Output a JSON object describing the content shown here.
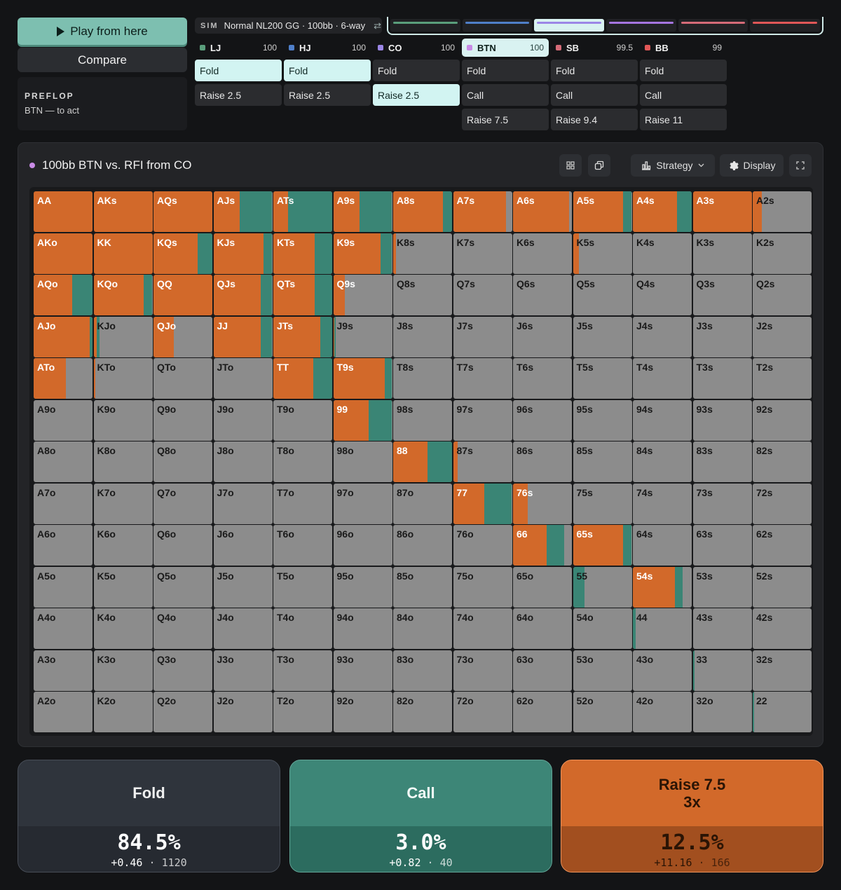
{
  "left": {
    "play_label": "Play from here",
    "compare_label": "Compare",
    "street": "PREFLOP",
    "status": "BTN — to act"
  },
  "sim": {
    "tag": "SIM",
    "name": "Normal NL200 GG · 100bb · 6-way",
    "swap_icon": "⇄"
  },
  "seat_bars": [
    {
      "color": "#5a9e7c",
      "active": false
    },
    {
      "color": "#4f7fc9",
      "active": false
    },
    {
      "color": "#9b86e6",
      "active": true
    },
    {
      "color": "#a575e0",
      "active": false
    },
    {
      "color": "#d56b78",
      "active": false
    },
    {
      "color": "#e05757",
      "active": false
    }
  ],
  "positions": [
    {
      "name": "LJ",
      "stack": "100",
      "color": "#5a9e7c",
      "actions": [
        "Fold",
        "Raise 2.5"
      ],
      "selected": 0
    },
    {
      "name": "HJ",
      "stack": "100",
      "color": "#4f7fc9",
      "actions": [
        "Fold",
        "Raise 2.5"
      ],
      "selected": 0
    },
    {
      "name": "CO",
      "stack": "100",
      "color": "#9b86e6",
      "actions": [
        "Fold",
        "Raise 2.5"
      ],
      "selected": 1
    },
    {
      "name": "BTN",
      "stack": "100",
      "color": "#c98be6",
      "actions": [
        "Fold",
        "Call",
        "Raise 7.5"
      ],
      "selected": -1,
      "active": true
    },
    {
      "name": "SB",
      "stack": "99.5",
      "color": "#d56b78",
      "actions": [
        "Fold",
        "Call",
        "Raise 9.4"
      ],
      "selected": -1
    },
    {
      "name": "BB",
      "stack": "99",
      "color": "#e05757",
      "actions": [
        "Fold",
        "Call",
        "Raise 11"
      ],
      "selected": -1
    }
  ],
  "panel": {
    "title": "100bb BTN vs. RFI from CO",
    "strategy_label": "Strategy",
    "display_label": "Display"
  },
  "colors": {
    "raise": "#d2692a",
    "call": "#3a8575",
    "fold": "#8c8c8c"
  },
  "grid": {
    "ranks": [
      "A",
      "K",
      "Q",
      "J",
      "T",
      "9",
      "8",
      "7",
      "6",
      "5",
      "4",
      "3",
      "2"
    ],
    "raise": [
      [
        100,
        100,
        100,
        45,
        25,
        45,
        85,
        90,
        95,
        85,
        75,
        100,
        15
      ],
      [
        100,
        100,
        75,
        85,
        70,
        80,
        5,
        0,
        0,
        10,
        0,
        0,
        0
      ],
      [
        65,
        85,
        100,
        80,
        70,
        20,
        0,
        0,
        0,
        0,
        0,
        0,
        0
      ],
      [
        95,
        5,
        35,
        80,
        80,
        2,
        0,
        0,
        0,
        0,
        0,
        0,
        0
      ],
      [
        55,
        3,
        0,
        0,
        68,
        88,
        0,
        0,
        0,
        0,
        0,
        0,
        0
      ],
      [
        0,
        0,
        0,
        0,
        0,
        60,
        0,
        0,
        0,
        0,
        0,
        0,
        0
      ],
      [
        0,
        0,
        0,
        0,
        0,
        0,
        58,
        8,
        0,
        0,
        0,
        0,
        0
      ],
      [
        0,
        0,
        0,
        0,
        0,
        0,
        0,
        53,
        25,
        0,
        0,
        0,
        0
      ],
      [
        0,
        0,
        0,
        0,
        0,
        0,
        0,
        0,
        57,
        85,
        0,
        0,
        0
      ],
      [
        0,
        0,
        0,
        0,
        0,
        0,
        0,
        0,
        0,
        0,
        72,
        0,
        0
      ],
      [
        0,
        0,
        0,
        0,
        0,
        0,
        0,
        0,
        0,
        0,
        0,
        0,
        0
      ],
      [
        0,
        0,
        0,
        0,
        0,
        0,
        0,
        0,
        0,
        0,
        0,
        0,
        0
      ],
      [
        0,
        0,
        0,
        0,
        0,
        0,
        0,
        0,
        0,
        0,
        0,
        0,
        0
      ]
    ],
    "call": [
      [
        0,
        0,
        0,
        55,
        75,
        55,
        15,
        0,
        0,
        15,
        25,
        0,
        0
      ],
      [
        0,
        0,
        25,
        15,
        30,
        20,
        0,
        0,
        0,
        0,
        0,
        0,
        0
      ],
      [
        35,
        15,
        0,
        20,
        30,
        0,
        0,
        0,
        0,
        0,
        0,
        0,
        0
      ],
      [
        5,
        5,
        0,
        20,
        20,
        2,
        0,
        0,
        0,
        0,
        0,
        0,
        0
      ],
      [
        0,
        0,
        0,
        0,
        32,
        12,
        0,
        0,
        0,
        0,
        0,
        0,
        0
      ],
      [
        0,
        0,
        0,
        0,
        0,
        40,
        0,
        0,
        0,
        0,
        0,
        0,
        0
      ],
      [
        0,
        0,
        0,
        0,
        0,
        0,
        42,
        0,
        0,
        0,
        0,
        0,
        0
      ],
      [
        0,
        0,
        0,
        0,
        0,
        0,
        0,
        47,
        0,
        0,
        0,
        0,
        0
      ],
      [
        0,
        0,
        0,
        0,
        0,
        0,
        0,
        0,
        30,
        15,
        0,
        0,
        0
      ],
      [
        0,
        0,
        0,
        0,
        0,
        0,
        0,
        0,
        0,
        20,
        12,
        0,
        0
      ],
      [
        0,
        0,
        0,
        0,
        0,
        0,
        0,
        0,
        0,
        0,
        5,
        0,
        0
      ],
      [
        0,
        0,
        0,
        0,
        0,
        0,
        0,
        0,
        0,
        0,
        0,
        3,
        0
      ],
      [
        0,
        0,
        0,
        0,
        0,
        0,
        0,
        0,
        0,
        0,
        0,
        0,
        2
      ]
    ]
  },
  "summary": {
    "fold": {
      "label": "Fold",
      "sub": "",
      "pct": "84.5%",
      "ev": "+0.46",
      "combos": "1120"
    },
    "call": {
      "label": "Call",
      "sub": "",
      "pct": "3.0%",
      "ev": "+0.82",
      "combos": "40"
    },
    "raise": {
      "label": "Raise 7.5",
      "sub": "3x",
      "pct": "12.5%",
      "ev": "+11.16",
      "combos": "166"
    }
  }
}
